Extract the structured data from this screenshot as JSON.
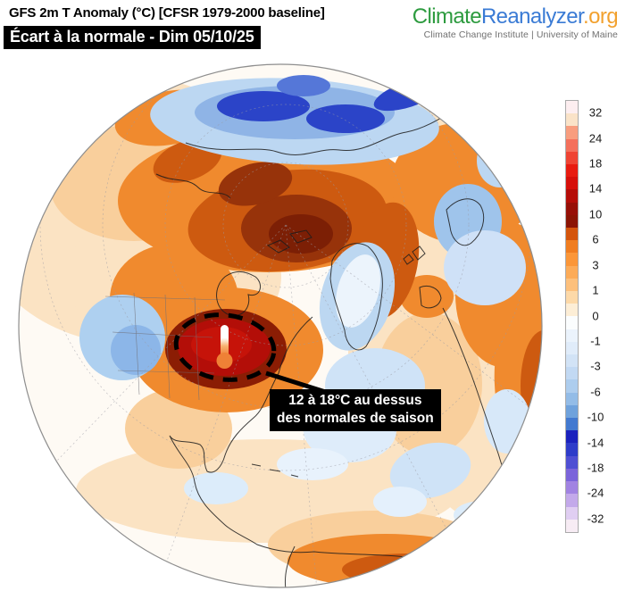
{
  "header": {
    "title": "GFS 2m T Anomaly (°C) [CFSR 1979-2000 baseline]",
    "subtitle": "Écart à la normale - Dim 05/10/25"
  },
  "logo": {
    "part1": "Climate",
    "part2": "Reanalyzer",
    "part3": ".org",
    "tagline": "Climate Change Institute | University of Maine",
    "colors": {
      "part1": "#2d9b3f",
      "part2": "#3a7bd5",
      "part3": "#f2a12e"
    }
  },
  "annotation": {
    "line1": "12 à 18°C au dessus",
    "line2": "des normales de saison"
  },
  "colorbar": {
    "ticks": [
      "32",
      "24",
      "18",
      "14",
      "10",
      "6",
      "3",
      "1",
      "0",
      "-1",
      "-3",
      "-6",
      "-10",
      "-14",
      "-18",
      "-24",
      "-32"
    ],
    "colors": [
      "#fdeef0",
      "#fae3c8",
      "#f89d7e",
      "#f4705c",
      "#ef4433",
      "#e81b10",
      "#d60f0a",
      "#b50d08",
      "#970f07",
      "#8b1404",
      "#d4550c",
      "#f07d20",
      "#fb9638",
      "#fcab58",
      "#fdc07c",
      "#fdd9a8",
      "#fdeed6",
      "#fbfdfe",
      "#ebf3fc",
      "#e0ecfa",
      "#d2e3f6",
      "#c2d9f3",
      "#adcdee",
      "#93bce7",
      "#6fa2dc",
      "#4379d0",
      "#1b22bd",
      "#2e3cc9",
      "#4f4fd3",
      "#7b64da",
      "#a183e2",
      "#c3a9ea",
      "#e0cef2",
      "#f7ecf4"
    ]
  },
  "map": {
    "type": "global-temperature-anomaly",
    "hotspot_color": "#b30e08",
    "annotation_box_color": "#000000"
  }
}
